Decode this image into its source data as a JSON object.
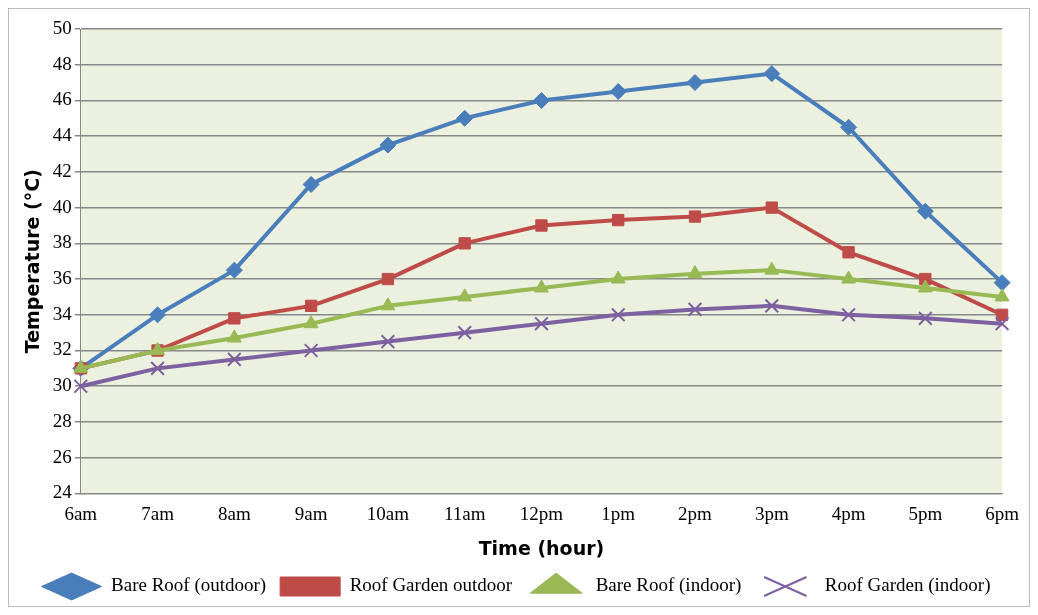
{
  "chart_data": {
    "type": "line",
    "xlabel": "Time (hour)",
    "ylabel": "Temperature (°C)",
    "categories": [
      "6am",
      "7am",
      "8am",
      "9am",
      "10am",
      "11am",
      "12pm",
      "1pm",
      "2pm",
      "3pm",
      "4pm",
      "5pm",
      "6pm"
    ],
    "series": [
      {
        "name": "Bare Roof (outdoor)",
        "color": "#4a7ebb",
        "marker": "diamond",
        "values": [
          31,
          34,
          36.5,
          41.3,
          43.5,
          45,
          46,
          46.5,
          47,
          47.5,
          44.5,
          39.8,
          35.8
        ]
      },
      {
        "name": "Roof Garden outdoor",
        "color": "#be4b48",
        "marker": "square",
        "values": [
          31,
          32,
          33.8,
          34.5,
          36,
          38,
          39,
          39.3,
          39.5,
          40,
          37.5,
          36,
          34
        ]
      },
      {
        "name": "Bare Roof (indoor)",
        "color": "#98b954",
        "marker": "triangle",
        "values": [
          31,
          32,
          32.7,
          33.5,
          34.5,
          35,
          35.5,
          36,
          36.3,
          36.5,
          36,
          35.5,
          35
        ]
      },
      {
        "name": "Roof Garden (indoor)",
        "color": "#7d60a0",
        "marker": "cross",
        "values": [
          30,
          31,
          31.5,
          32,
          32.5,
          33,
          33.5,
          34,
          34.3,
          34.5,
          34,
          33.8,
          33.5
        ]
      }
    ],
    "ylim": [
      24,
      50
    ],
    "yticks": [
      24,
      26,
      28,
      30,
      32,
      34,
      36,
      38,
      40,
      42,
      44,
      46,
      48,
      50
    ],
    "grid": "y",
    "legend": "bottom"
  }
}
